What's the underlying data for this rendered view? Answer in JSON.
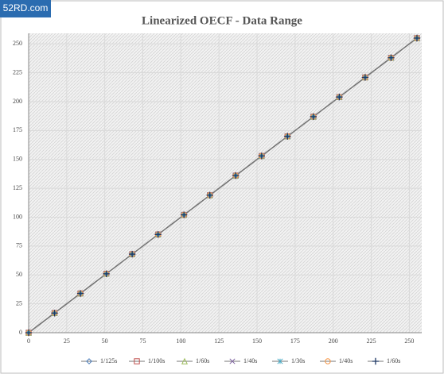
{
  "watermark": "52RD.com",
  "chart_data": {
    "type": "line",
    "title": "Linearized OECF - Data Range",
    "x": [
      0,
      17,
      34,
      51,
      68,
      85,
      102,
      119,
      136,
      153,
      170,
      187,
      204,
      221,
      238,
      255
    ],
    "series": [
      {
        "name": "1/125s",
        "color": "#4f81bd",
        "marker": "diamond",
        "values": [
          0,
          17,
          34,
          51,
          68,
          85,
          102,
          119,
          136,
          153,
          170,
          187,
          204,
          221,
          238,
          255
        ]
      },
      {
        "name": "1/100s",
        "color": "#c0504d",
        "marker": "square",
        "values": [
          0,
          17,
          34,
          51,
          68,
          85,
          102,
          119,
          136,
          153,
          170,
          187,
          204,
          221,
          238,
          255
        ]
      },
      {
        "name": "1/60s",
        "color": "#9bbb59",
        "marker": "triangle",
        "values": [
          0,
          17,
          34,
          51,
          68,
          85,
          102,
          119,
          136,
          153,
          170,
          187,
          204,
          221,
          238,
          255
        ]
      },
      {
        "name": "1/40s",
        "color": "#8064a2",
        "marker": "x",
        "values": [
          0,
          17,
          34,
          51,
          68,
          85,
          102,
          119,
          136,
          153,
          170,
          187,
          204,
          221,
          238,
          255
        ]
      },
      {
        "name": "1/30s",
        "color": "#4bacc6",
        "marker": "star",
        "values": [
          0,
          17,
          34,
          51,
          68,
          85,
          102,
          119,
          136,
          153,
          170,
          187,
          204,
          221,
          238,
          255
        ]
      },
      {
        "name": "1/40s",
        "color": "#f79646",
        "marker": "circle",
        "values": [
          0,
          17,
          34,
          51,
          68,
          85,
          102,
          119,
          136,
          153,
          170,
          187,
          204,
          221,
          238,
          255
        ]
      },
      {
        "name": "1/60s",
        "color": "#1f3864",
        "marker": "plus",
        "values": [
          0,
          17,
          34,
          51,
          68,
          85,
          102,
          119,
          136,
          153,
          170,
          187,
          204,
          221,
          238,
          255
        ]
      }
    ],
    "line_color": "#777777",
    "xlim": [
      0,
      255
    ],
    "ylim": [
      0,
      255
    ],
    "xticks": [
      0,
      25,
      50,
      75,
      100,
      125,
      150,
      175,
      200,
      225,
      250
    ],
    "yticks": [
      0,
      25,
      50,
      75,
      100,
      125,
      150,
      175,
      200,
      225,
      250
    ],
    "grid": true,
    "legend": "bottom"
  }
}
